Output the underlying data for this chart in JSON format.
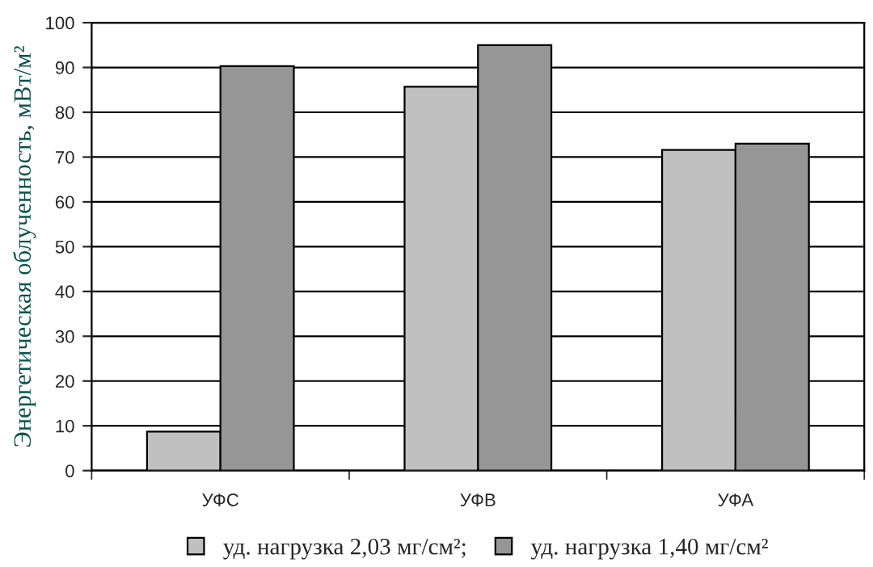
{
  "chart_data": {
    "type": "bar",
    "ylabel": "Энергетическая облученность, мВт/м²",
    "categories": [
      "УФС",
      "УФВ",
      "УФА"
    ],
    "series": [
      {
        "name": "уд. нагрузка 2,03 мг/см²;",
        "color": "#c0c0c0",
        "values": [
          8.7,
          85.7,
          71.6
        ]
      },
      {
        "name": "уд. нагрузка 1,40 мг/см²",
        "color": "#969696",
        "values": [
          90.3,
          95,
          73
        ]
      }
    ],
    "ylim": [
      0,
      100
    ],
    "yticks": [
      0,
      10,
      20,
      30,
      40,
      50,
      60,
      70,
      80,
      90,
      100
    ],
    "grid": "y",
    "legend": "bottom"
  }
}
